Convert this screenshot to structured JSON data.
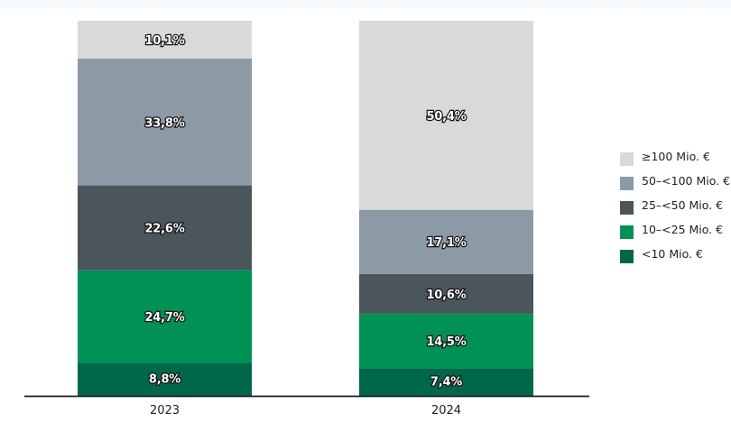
{
  "chart_data": {
    "type": "bar",
    "stacked": true,
    "categories": [
      "2023",
      "2024"
    ],
    "series": [
      {
        "name": "<10 Mio. €",
        "values": [
          8.8,
          7.4
        ],
        "color": "#00684a"
      },
      {
        "name": "10–<25 Mio. €",
        "values": [
          24.7,
          14.5
        ],
        "color": "#009155"
      },
      {
        "name": "25–<50 Mio. €",
        "values": [
          22.6,
          10.6
        ],
        "color": "#4b555c"
      },
      {
        "name": "50–<100 Mio. €",
        "values": [
          33.8,
          17.1
        ],
        "color": "#8b9aa5"
      },
      {
        "name": "≥100 Mio. €",
        "values": [
          10.1,
          50.4
        ],
        "color": "#d9d9d9"
      }
    ],
    "data_labels": [
      [
        "8,8%",
        "24,7%",
        "22,6%",
        "33,8%",
        "10,1%"
      ],
      [
        "7,4%",
        "14,5%",
        "10,6%",
        "17,1%",
        "50,4%"
      ]
    ],
    "ylim": [
      0,
      100
    ],
    "grid": false,
    "legend_position": "right",
    "title": "",
    "xlabel": "",
    "ylabel": ""
  }
}
